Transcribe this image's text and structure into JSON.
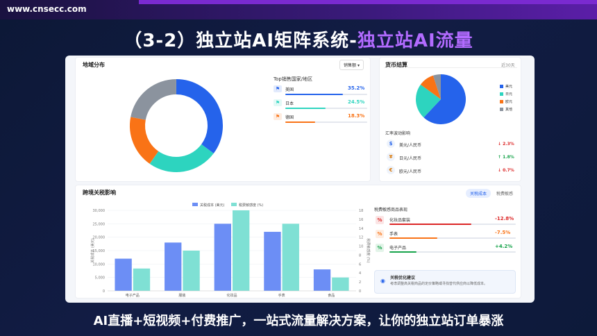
{
  "site": "www.cnsecc.com",
  "title_main": "（3-2）独立站AI矩阵系统-",
  "title_highlight": "独立站AI流量",
  "bottom_text": "AI直播+短视频+付费推广，一站式流量解决方案，让你的独立站订单暴涨",
  "region": {
    "title": "地域分布",
    "select": "销售额",
    "top_title": "Top销售国家/地区",
    "countries": [
      {
        "name": "美国",
        "pct": "35.2%",
        "value": 35.2,
        "color": "#2563eb"
      },
      {
        "name": "日本",
        "pct": "24.5%",
        "value": 24.5,
        "color": "#2dd4bf"
      },
      {
        "name": "德国",
        "pct": "18.3%",
        "value": 18.3,
        "color": "#f97316"
      }
    ],
    "donut": [
      {
        "value": 35.2,
        "color": "#2563eb"
      },
      {
        "value": 24.5,
        "color": "#2dd4bf"
      },
      {
        "value": 18.3,
        "color": "#f97316"
      },
      {
        "value": 22.0,
        "color": "#8b939e"
      }
    ]
  },
  "currency": {
    "title": "货币结算",
    "period": "近30天",
    "legend": [
      {
        "name": "美元",
        "color": "#2563eb"
      },
      {
        "name": "日元",
        "color": "#2dd4bf"
      },
      {
        "name": "欧元",
        "color": "#f97316"
      },
      {
        "name": "其他",
        "color": "#8b939e"
      }
    ],
    "pie": [
      {
        "value": 62,
        "color": "#2563eb"
      },
      {
        "value": 23,
        "color": "#2dd4bf"
      },
      {
        "value": 10,
        "color": "#f97316"
      },
      {
        "value": 5,
        "color": "#8b939e"
      }
    ],
    "fx_title": "汇率波动影响",
    "fx": [
      {
        "icon": "$",
        "pair": "美元/人民币",
        "change": "2.3%",
        "dir": "↓",
        "color": "#dc2626"
      },
      {
        "icon": "¥",
        "pair": "日元/人民币",
        "change": "1.8%",
        "dir": "↑",
        "color": "#16a34a"
      },
      {
        "icon": "€",
        "pair": "欧元/人民币",
        "change": "0.7%",
        "dir": "↓",
        "color": "#dc2626"
      }
    ]
  },
  "tariff": {
    "title": "跨境关税影响",
    "tabs": [
      "关税成本",
      "税费敏感"
    ],
    "sensitive_title": "税费敏感商品表现",
    "sensitive": [
      {
        "name": "化妆品套装",
        "change": "-12.8%",
        "value": -12.8,
        "color": "#dc2626"
      },
      {
        "name": "手表",
        "change": "-7.5%",
        "value": -7.5,
        "color": "#f97316"
      },
      {
        "name": "电子产品",
        "change": "+4.2%",
        "value": 4.2,
        "color": "#16a34a"
      }
    ],
    "tip_title": "关税优化建议",
    "tip_text": "考虑调整高关税商品的定价策略或寻找替代供应商以降低成本。"
  },
  "chart_data": {
    "type": "bar",
    "categories": [
      "电子产品",
      "服装",
      "化妆品",
      "手表",
      "食品"
    ],
    "series": [
      {
        "name": "关税成本 (美元)",
        "values": [
          12000,
          18000,
          25000,
          22000,
          8000
        ],
        "color": "#6c8ef5",
        "axis": "left"
      },
      {
        "name": "税费敏感度 (%)",
        "values": [
          5,
          9,
          18,
          15,
          3
        ],
        "color": "#7fe0d4",
        "axis": "right"
      }
    ],
    "ylabel": "关税成本 (美元)",
    "ylabel_right": "税费敏感度 (%)",
    "ylim": [
      0,
      30000
    ],
    "ylim_right": [
      0,
      18
    ],
    "yticks": [
      "0",
      "5,000",
      "10,000",
      "15,000",
      "20,000",
      "25,000",
      "30,000"
    ],
    "yticks_right": [
      "0",
      "2",
      "4",
      "6",
      "8",
      "10",
      "12",
      "14",
      "16",
      "18"
    ]
  }
}
